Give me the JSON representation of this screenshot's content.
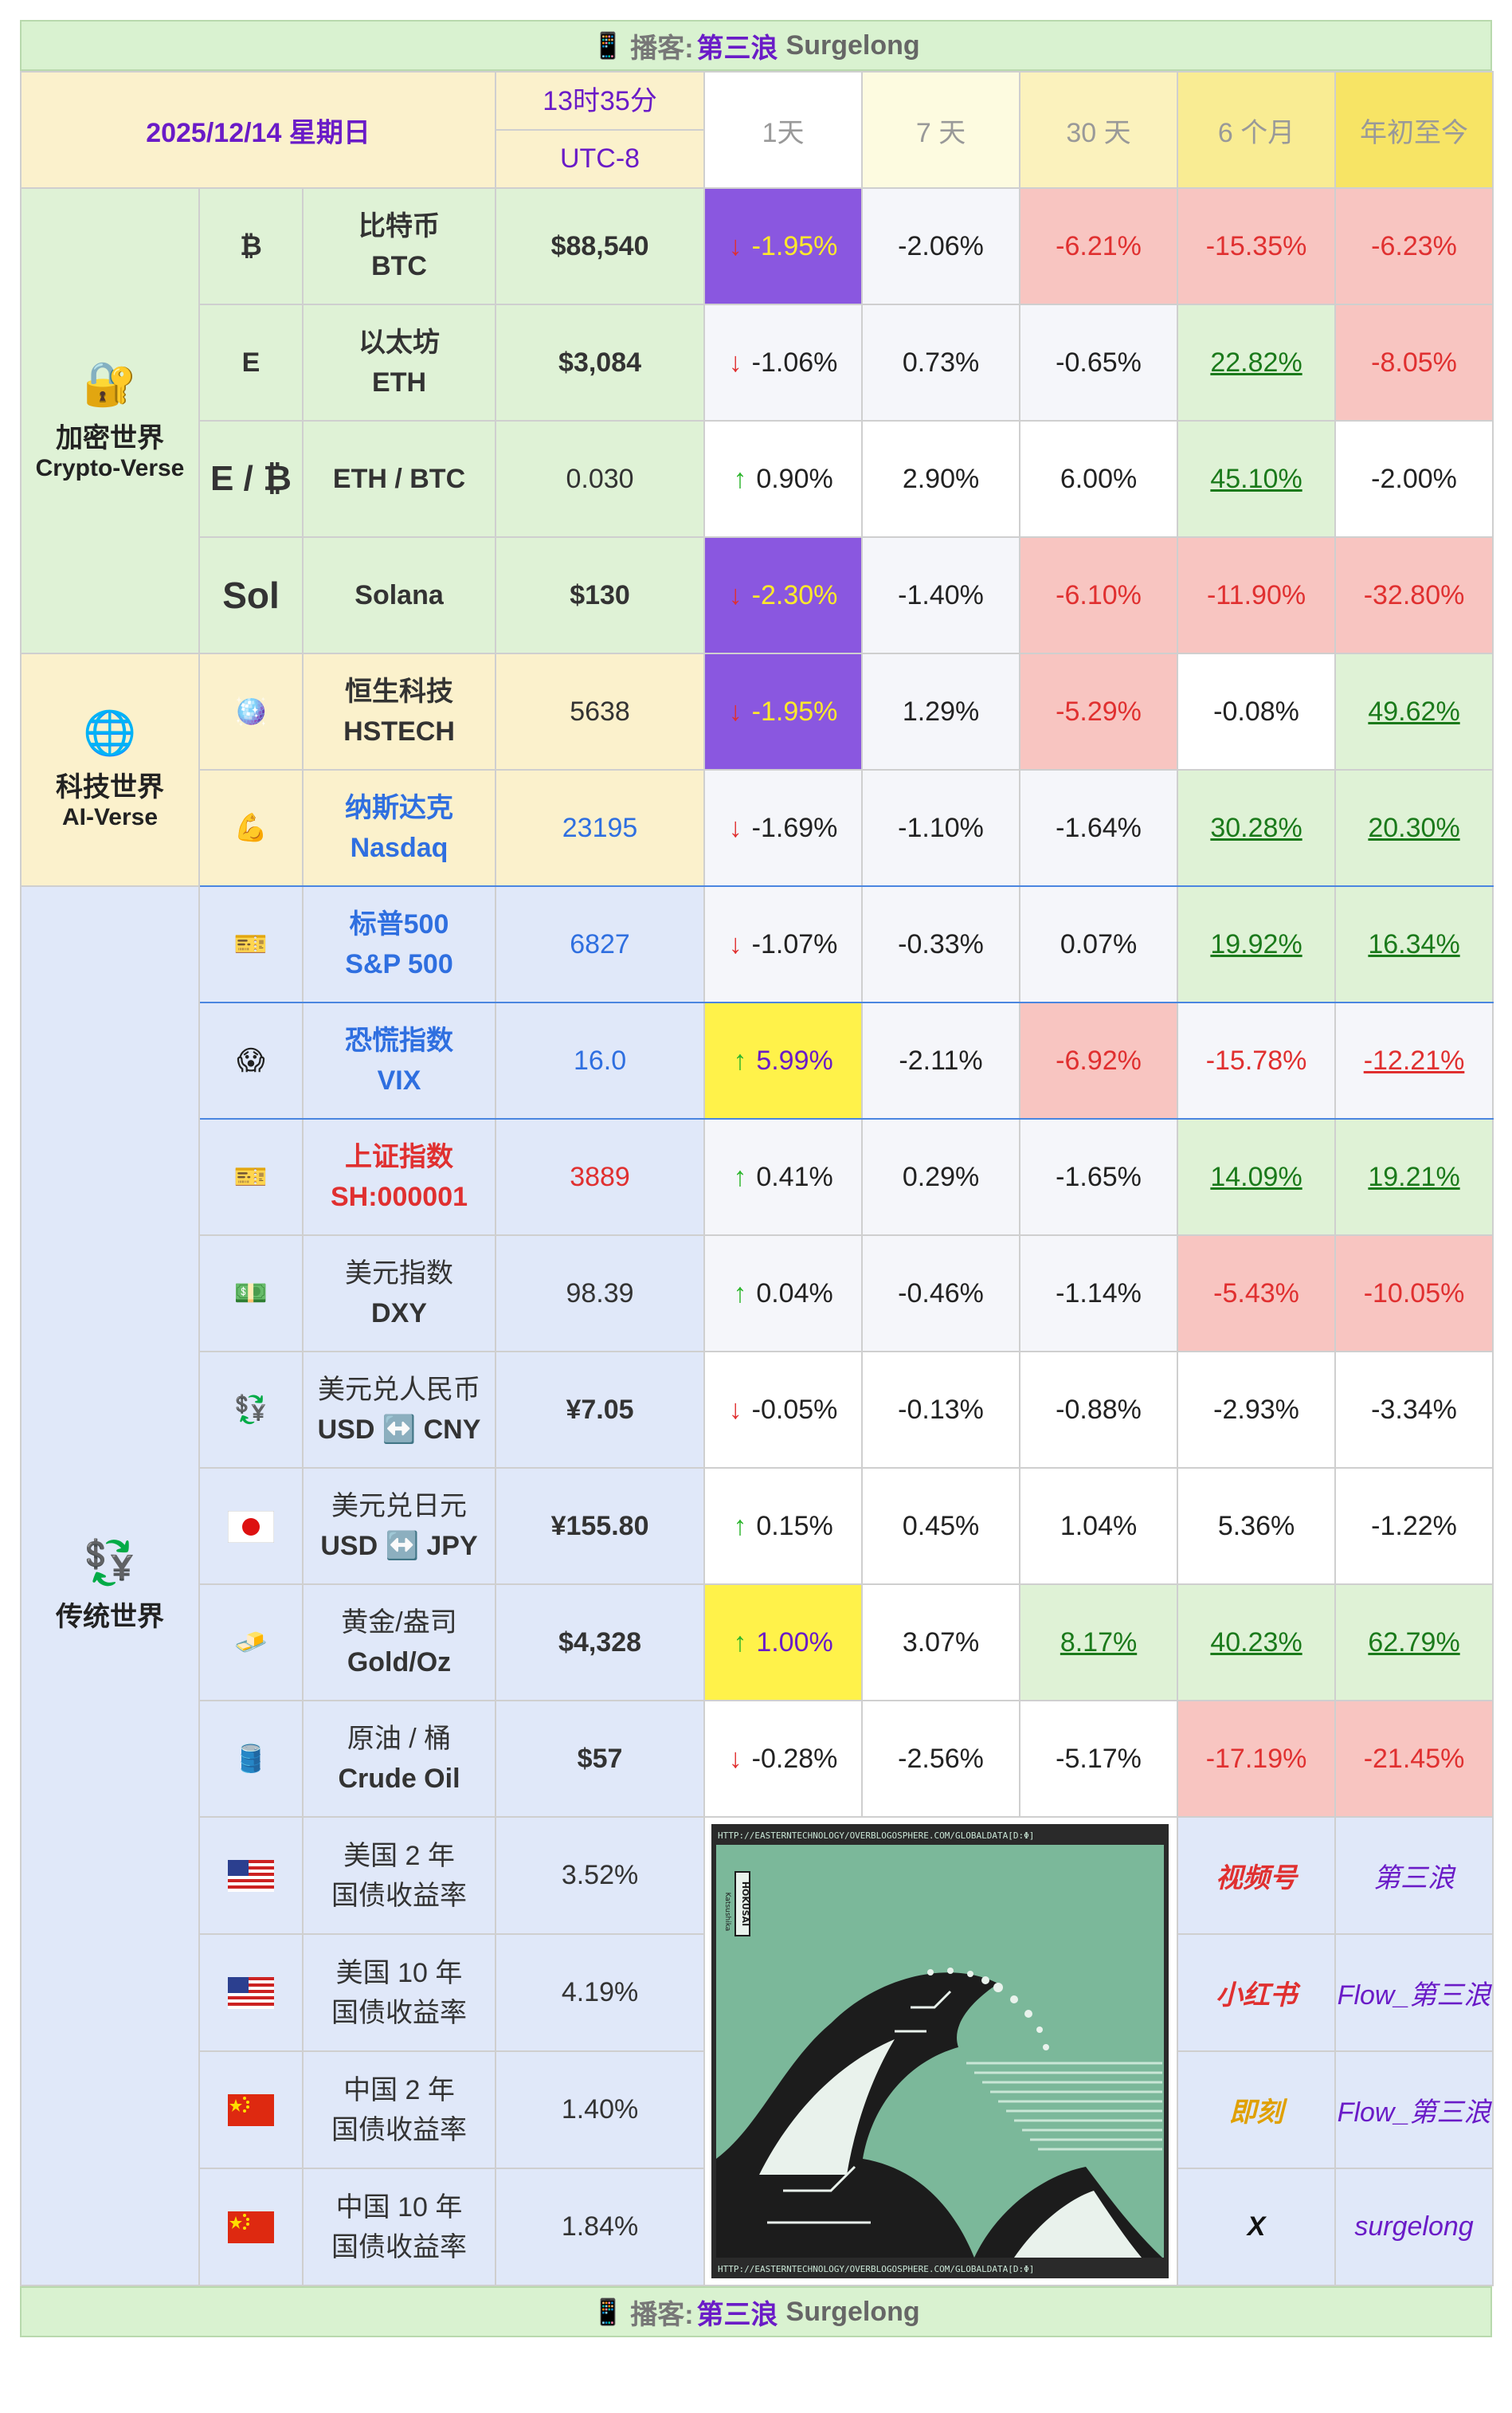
{
  "banner": {
    "icon": "📱",
    "podcast_label": "播客:",
    "name_zh": "第三浪",
    "name_en": "Surgelong"
  },
  "header": {
    "date": "2025/12/14 星期日",
    "time": "13时35分",
    "timezone": "UTC-8",
    "periods": [
      "1天",
      "7 天",
      "30 天",
      "6 个月",
      "年初至今"
    ]
  },
  "groups": {
    "crypto": {
      "icon": "🔐",
      "zh": "加密世界",
      "en": "Crypto-Verse"
    },
    "tech": {
      "icon": "🌐",
      "zh": "科技世界",
      "en": "AI-Verse"
    },
    "trad": {
      "icon": "💱",
      "zh": "传统世界"
    }
  },
  "rows": [
    {
      "symbol": "₿",
      "name1": "比特币",
      "name2": "BTC",
      "price": "$88,540",
      "changes": [
        "-1.95%",
        "-2.06%",
        "-6.21%",
        "-15.35%",
        "-6.23%"
      ]
    },
    {
      "symbol": "E",
      "name1": "以太坊",
      "name2": "ETH",
      "price": "$3,084",
      "changes": [
        "-1.06%",
        "0.73%",
        "-0.65%",
        "22.82%",
        "-8.05%"
      ]
    },
    {
      "symbol": "E / ₿",
      "name1": "ETH / BTC",
      "name2": "",
      "price": "0.030",
      "changes": [
        "0.90%",
        "2.90%",
        "6.00%",
        "45.10%",
        "-2.00%"
      ]
    },
    {
      "symbol": "Sol",
      "name1": "Solana",
      "name2": "",
      "price": "$130",
      "changes": [
        "-2.30%",
        "-1.40%",
        "-6.10%",
        "-11.90%",
        "-32.80%"
      ]
    },
    {
      "symbol": "🪩",
      "name1": "恒生科技",
      "name2": "HSTECH",
      "price": "5638",
      "changes": [
        "-1.95%",
        "1.29%",
        "-5.29%",
        "-0.08%",
        "49.62%"
      ]
    },
    {
      "symbol": "💪",
      "name1": "纳斯达克",
      "name2": "Nasdaq",
      "price": "23195",
      "changes": [
        "-1.69%",
        "-1.10%",
        "-1.64%",
        "30.28%",
        "20.30%"
      ]
    },
    {
      "symbol": "🎫",
      "name1": "标普500",
      "name2": "S&P 500",
      "price": "6827",
      "changes": [
        "-1.07%",
        "-0.33%",
        "0.07%",
        "19.92%",
        "16.34%"
      ]
    },
    {
      "symbol": "😱",
      "name1": "恐慌指数",
      "name2": "VIX",
      "price": "16.0",
      "changes": [
        "5.99%",
        "-2.11%",
        "-6.92%",
        "-15.78%",
        "-12.21%"
      ]
    },
    {
      "symbol": "🎫",
      "name1": "上证指数",
      "name2": "SH:000001",
      "price": "3889",
      "changes": [
        "0.41%",
        "0.29%",
        "-1.65%",
        "14.09%",
        "19.21%"
      ]
    },
    {
      "symbol": "💵",
      "name1": "美元指数",
      "name2": "DXY",
      "price": "98.39",
      "changes": [
        "0.04%",
        "-0.46%",
        "-1.14%",
        "-5.43%",
        "-10.05%"
      ]
    },
    {
      "symbol": "💱",
      "name1": "美元兑人民币",
      "name2": "USD ↔️ CNY",
      "price": "¥7.05",
      "changes": [
        "-0.05%",
        "-0.13%",
        "-0.88%",
        "-2.93%",
        "-3.34%"
      ]
    },
    {
      "symbol": "🇯🇵",
      "name1": "美元兑日元",
      "name2": "USD ↔️ JPY",
      "price": "¥155.80",
      "changes": [
        "0.15%",
        "0.45%",
        "1.04%",
        "5.36%",
        "-1.22%"
      ]
    },
    {
      "symbol": "🧈",
      "name1": "黄金/盎司",
      "name2": "Gold/Oz",
      "price": "$4,328",
      "changes": [
        "1.00%",
        "3.07%",
        "8.17%",
        "40.23%",
        "62.79%"
      ]
    },
    {
      "symbol": "🛢️",
      "name1": "原油 / 桶",
      "name2": "Crude Oil",
      "price": "$57",
      "changes": [
        "-0.28%",
        "-2.56%",
        "-5.17%",
        "-17.19%",
        "-21.45%"
      ]
    }
  ],
  "bonds": [
    {
      "flag": "us",
      "name1": "美国 2 年",
      "name2": "国债收益率",
      "yield": "3.52%"
    },
    {
      "flag": "us",
      "name1": "美国 10 年",
      "name2": "国债收益率",
      "yield": "4.19%"
    },
    {
      "flag": "cn",
      "name1": "中国 2 年",
      "name2": "国债收益率",
      "yield": "1.40%"
    },
    {
      "flag": "cn",
      "name1": "中国 10 年",
      "name2": "国债收益率",
      "yield": "1.84%"
    }
  ],
  "wave_image": {
    "url_text": "HTTP://EASTERNTECHNOLOGY/OVERBLOGOSPHERE.COM/GLOBALDATA[D:Φ]",
    "label_vertical": "HOKUSAI",
    "sub_vertical": "Katsushika"
  },
  "social": [
    {
      "platform": "视频号",
      "handle": "第三浪",
      "color": "#e03030"
    },
    {
      "platform": "小红书",
      "handle": "Flow_第三浪",
      "color": "#e03030"
    },
    {
      "platform": "即刻",
      "handle": "Flow_第三浪",
      "color": "#e0a000"
    },
    {
      "platform": "X",
      "handle": "surgelong",
      "color": "#111111"
    }
  ]
}
